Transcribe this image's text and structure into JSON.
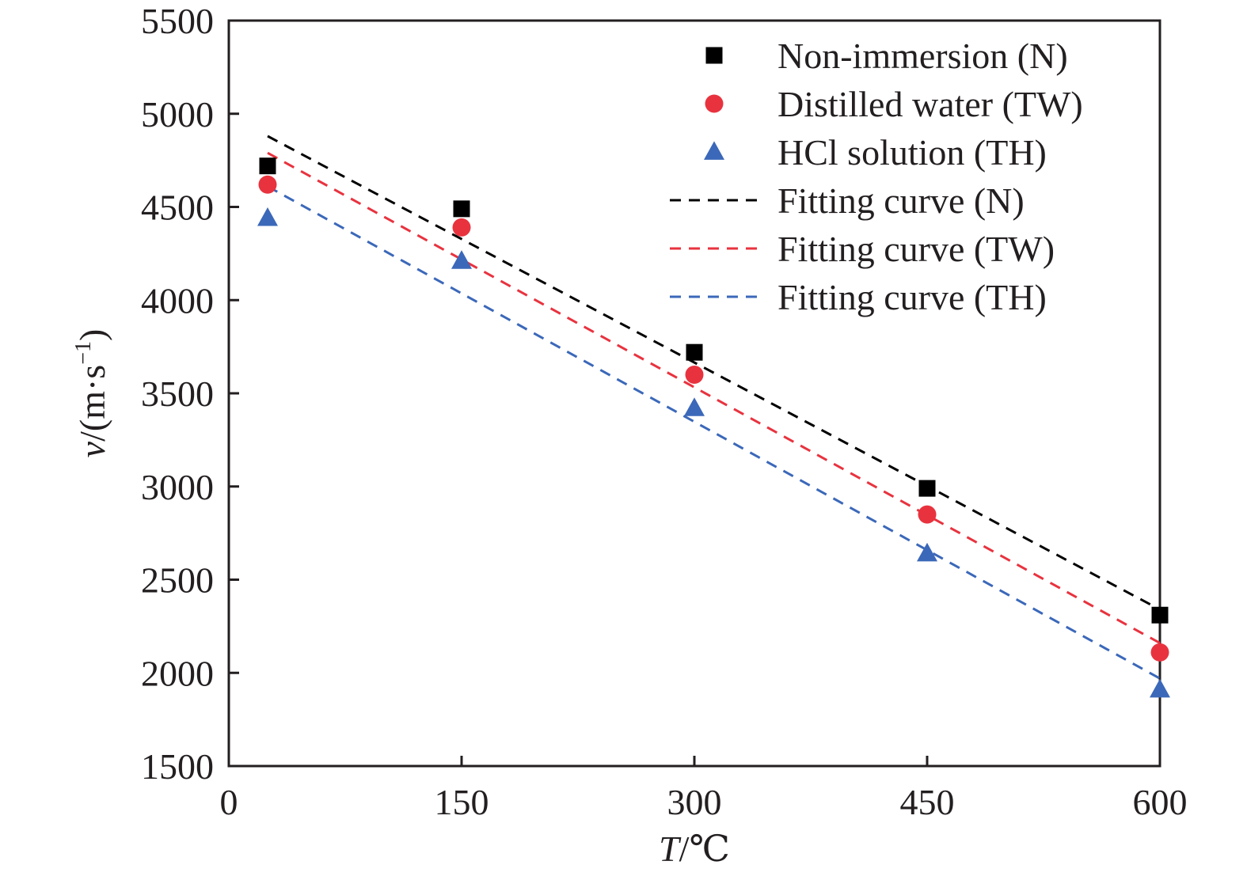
{
  "chart_data": {
    "type": "scatter",
    "xlabel_var": "T",
    "xlabel_unit": "/℃",
    "ylabel_var": "v",
    "ylabel_unit_open": "/(m·s",
    "ylabel_unit_exp": "−1",
    "ylabel_unit_close": ")",
    "xlim": [
      0,
      600
    ],
    "ylim": [
      1500,
      5500
    ],
    "xticks": [
      "0",
      "150",
      "300",
      "450",
      "600"
    ],
    "yticks": [
      "1500",
      "2000",
      "2500",
      "3000",
      "3500",
      "4000",
      "4500",
      "5000",
      "5500"
    ],
    "x": [
      25,
      150,
      300,
      450,
      600
    ],
    "series": [
      {
        "name": "Non-immersion (N)",
        "marker": "square",
        "color": "#000000",
        "values": [
          4720,
          4490,
          3720,
          2990,
          2310
        ]
      },
      {
        "name": "Distilled water (TW)",
        "marker": "circle",
        "color": "#e8333f",
        "values": [
          4620,
          4390,
          3600,
          2850,
          2110
        ]
      },
      {
        "name": "HCl solution (TH)",
        "marker": "triangle",
        "color": "#3b68b9",
        "values": [
          4440,
          4210,
          3420,
          2640,
          1910
        ]
      }
    ],
    "fits": [
      {
        "name": "Fitting curve (N)",
        "color": "#000000",
        "start": [
          25,
          4880
        ],
        "end": [
          600,
          2340
        ]
      },
      {
        "name": "Fitting curve (TW)",
        "color": "#e8333f",
        "start": [
          25,
          4790
        ],
        "end": [
          600,
          2160
        ]
      },
      {
        "name": "Fitting curve (TH)",
        "color": "#3b68b9",
        "start": [
          25,
          4610
        ],
        "end": [
          600,
          1970
        ]
      }
    ],
    "legend_position": "top-right",
    "grid": false
  }
}
